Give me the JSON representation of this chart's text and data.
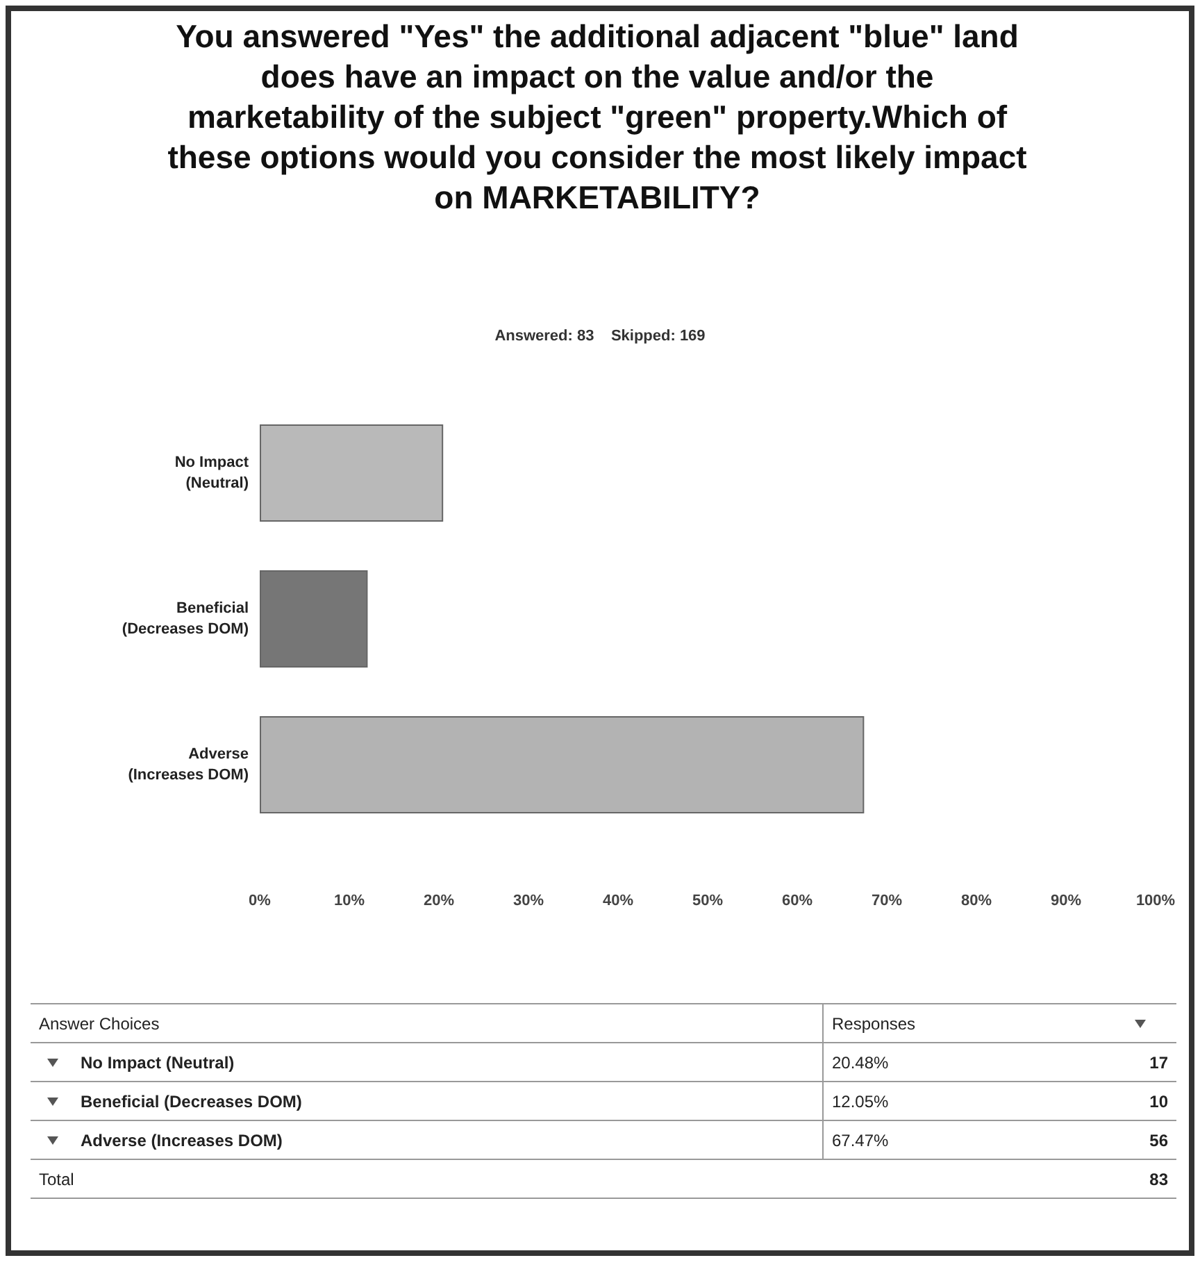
{
  "chart_data": {
    "type": "bar",
    "orientation": "horizontal",
    "title": "You answered \"Yes\" the additional adjacent \"blue\" land does have an impact on the value and/or the marketability of the subject \"green\" property.Which of these options would you consider the most likely impact on MARKETABILITY?",
    "subtitle": "Answered: 83    Skipped: 169",
    "categories": [
      "No Impact (Neutral)",
      "Beneficial (Decreases DOM)",
      "Adverse (Increases DOM)"
    ],
    "values": [
      20.48,
      12.05,
      67.47
    ],
    "colors": [
      "#b9b9b9",
      "#767676",
      "#b3b3b3"
    ],
    "xlim": [
      0,
      100
    ],
    "xticks": [
      {
        "value": 0,
        "label": "0%"
      },
      {
        "value": 10,
        "label": "10%"
      },
      {
        "value": 20,
        "label": "20%"
      },
      {
        "value": 30,
        "label": "30%"
      },
      {
        "value": 40,
        "label": "40%"
      },
      {
        "value": 50,
        "label": "50%"
      },
      {
        "value": 60,
        "label": "60%"
      },
      {
        "value": 70,
        "label": "70%"
      },
      {
        "value": 80,
        "label": "80%"
      },
      {
        "value": 90,
        "label": "90%"
      },
      {
        "value": 100,
        "label": "100%"
      }
    ],
    "annotations": [
      "Answer Choices",
      "Responses",
      "Total",
      "83",
      "17",
      "10",
      "56",
      "20.48%",
      "12.05%",
      "67.47%"
    ]
  }
}
